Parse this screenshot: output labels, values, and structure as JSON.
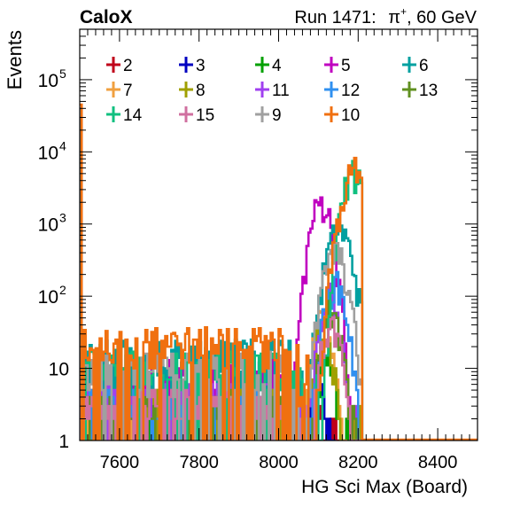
{
  "header": {
    "experiment": "CaloX",
    "run": "Run 1471:",
    "particle": "π",
    "particle_sup": "+",
    "energy": ", 60 GeV"
  },
  "chart_data": {
    "type": "histogram",
    "xlabel": "HG Sci Max (Board)",
    "ylabel": "Events",
    "xlim": [
      7500,
      8500
    ],
    "ylim": [
      1,
      500000
    ],
    "yscale": "log",
    "x_ticks": [
      7600,
      7800,
      8000,
      8200,
      8400
    ],
    "y_ticks": [
      {
        "value": 1,
        "label": "1"
      },
      {
        "value": 10,
        "label": "10"
      },
      {
        "value": 100,
        "label": "10",
        "exp": "2"
      },
      {
        "value": 1000,
        "label": "10",
        "exp": "3"
      },
      {
        "value": 10000,
        "label": "10",
        "exp": "4"
      },
      {
        "value": 100000,
        "label": "10",
        "exp": "5"
      }
    ],
    "legend": "top, 5 columns",
    "series": [
      {
        "name": "2",
        "color": "#c0001a",
        "spike": 30000,
        "noise": 2,
        "peak": 8095,
        "peakval": 3,
        "spread": 10
      },
      {
        "name": "3",
        "color": "#0000c0",
        "spike": 30000,
        "noise": 2,
        "peak": 8095,
        "peakval": 10,
        "spread": 10
      },
      {
        "name": "4",
        "color": "#00a000",
        "spike": 30000,
        "noise": 3,
        "peak": 8120,
        "peakval": 20,
        "spread": 14
      },
      {
        "name": "5",
        "color": "#c000c0",
        "spike": 40000,
        "noise": 8,
        "peak": 8105,
        "peakval": 2000,
        "spread": 20
      },
      {
        "name": "6",
        "color": "#00a0a0",
        "spike": 40000,
        "noise": 15,
        "peak": 8150,
        "peakval": 800,
        "spread": 24
      },
      {
        "name": "7",
        "color": "#f0a040",
        "spike": 30000,
        "noise": 3,
        "peak": 8110,
        "peakval": 50,
        "spread": 18
      },
      {
        "name": "8",
        "color": "#a0a000",
        "spike": 30000,
        "noise": 3,
        "peak": 8110,
        "peakval": 40,
        "spread": 16
      },
      {
        "name": "11",
        "color": "#a040f0",
        "spike": 30000,
        "noise": 4,
        "peak": 8125,
        "peakval": 100,
        "spread": 18
      },
      {
        "name": "12",
        "color": "#3090f0",
        "spike": 30000,
        "noise": 3,
        "peak": 8140,
        "peakval": 150,
        "spread": 20
      },
      {
        "name": "13",
        "color": "#609020",
        "spike": 30000,
        "noise": 3,
        "peak": 8130,
        "peakval": 60,
        "spread": 18
      },
      {
        "name": "14",
        "color": "#10c080",
        "spike": 40000,
        "noise": 10,
        "peak": 8185,
        "peakval": 5000,
        "spread": 20
      },
      {
        "name": "15",
        "color": "#d070a0",
        "spike": 30000,
        "noise": 3,
        "peak": 8130,
        "peakval": 40,
        "spread": 18
      },
      {
        "name": "9",
        "color": "#a0a0a0",
        "spike": 40000,
        "noise": 10,
        "peak": 8140,
        "peakval": 400,
        "spread": 22
      },
      {
        "name": "10",
        "color": "#f07010",
        "spike": 45000,
        "noise": 22,
        "peak": 8195,
        "peakval": 6000,
        "spread": 26
      }
    ]
  }
}
